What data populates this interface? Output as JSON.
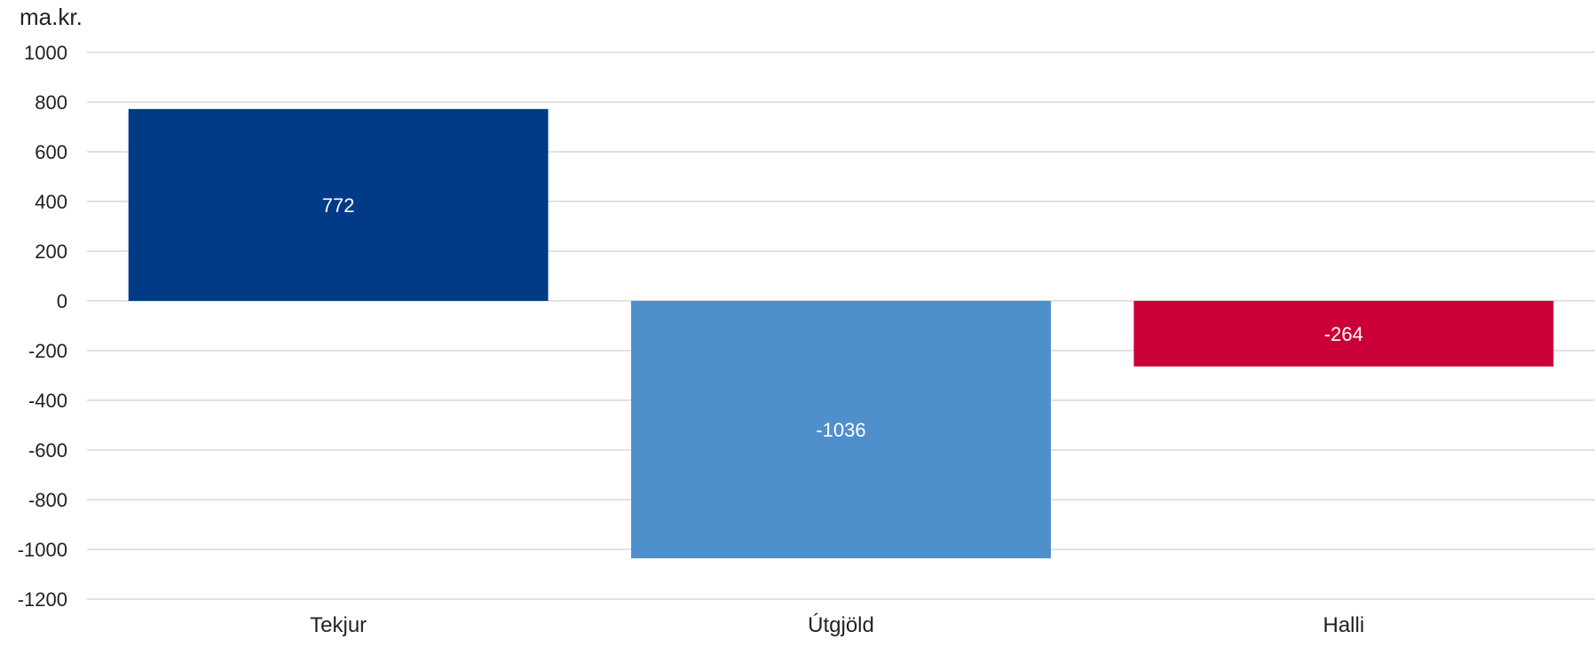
{
  "unit_label": "ma.kr.",
  "chart_data": {
    "type": "bar",
    "title": "",
    "xlabel": "",
    "ylabel": "ma.kr.",
    "categories": [
      "Tekjur",
      "Útgjöld",
      "Halli"
    ],
    "values": [
      772,
      -1036,
      -264
    ],
    "data_labels": [
      "772",
      "-1036",
      "-264"
    ],
    "colors": [
      "#023b85",
      "#4f8fcc",
      "#cc0038"
    ],
    "ylim": [
      -1200,
      1000
    ],
    "yticks": [
      1000,
      800,
      600,
      400,
      200,
      0,
      -200,
      -400,
      -600,
      -800,
      -1000,
      -1200
    ],
    "grid": true,
    "legend": "none"
  }
}
